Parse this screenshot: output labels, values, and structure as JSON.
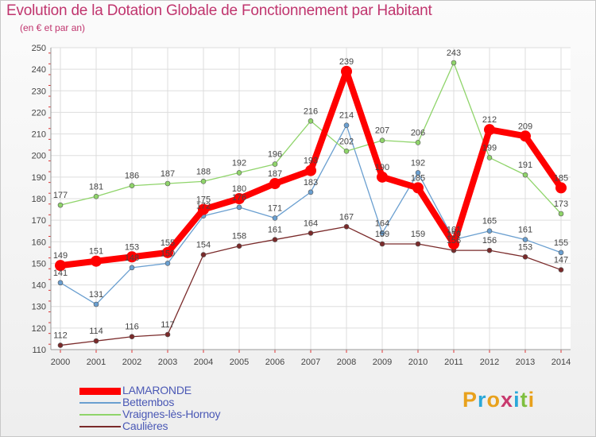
{
  "title": "Evolution de la Dotation Globale de Fonctionnement par Habitant",
  "subtitle": "(en € et par an)",
  "logo": {
    "text": "Proxiti",
    "letter_colors": [
      "#e8a11c",
      "#2aa8d9",
      "#e8a11c",
      "#c83a6e",
      "#2aa8d9",
      "#7fbf3f",
      "#e8a11c"
    ]
  },
  "chart_data": {
    "type": "line",
    "title": "Evolution de la Dotation Globale de Fonctionnement par Habitant",
    "subtitle": "(en € et par an)",
    "xlabel": "",
    "ylabel": "",
    "ylim": [
      110,
      250
    ],
    "yticks": [
      110,
      120,
      130,
      140,
      150,
      160,
      170,
      180,
      190,
      200,
      210,
      220,
      230,
      240,
      250
    ],
    "grid": true,
    "legend_position": "bottom-left",
    "x": [
      "2000",
      "2001",
      "2002",
      "2003",
      "2004",
      "2005",
      "2006",
      "2007",
      "2008",
      "2009",
      "2010",
      "2011",
      "2012",
      "2013",
      "2014"
    ],
    "series": [
      {
        "name": "LAMARONDE",
        "color": "#ff0000",
        "style": "thick",
        "values": [
          149,
          151,
          153,
          155,
          175,
          180,
          187,
          193,
          239,
          190,
          185,
          159,
          212,
          209,
          185
        ]
      },
      {
        "name": "Bettembos",
        "color": "#6a9fd0",
        "style": "thin",
        "values": [
          141,
          131,
          148,
          150,
          172,
          176,
          171,
          183,
          214,
          164,
          192,
          161,
          165,
          161,
          155
        ]
      },
      {
        "name": "Vraignes-lès-Hornoy",
        "color": "#8fd46a",
        "style": "thin",
        "values": [
          177,
          181,
          186,
          187,
          188,
          192,
          196,
          216,
          202,
          207,
          206,
          243,
          199,
          191,
          173
        ]
      },
      {
        "name": "Caulières",
        "color": "#7a2a2a",
        "style": "thin",
        "values": [
          112,
          114,
          116,
          117,
          154,
          158,
          161,
          164,
          167,
          159,
          159,
          156,
          156,
          153,
          147
        ]
      }
    ]
  }
}
